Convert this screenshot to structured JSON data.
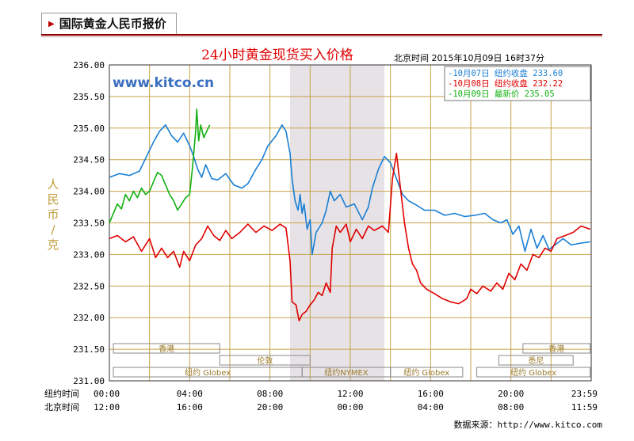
{
  "tab_title": "国际黄金人民币报价",
  "watermark": "www.kitco.cn",
  "source_text": "数据来源：http://www.kitco.com",
  "colors": {
    "day1": "#1a7fd4",
    "day2": "#e00000",
    "day3": "#10b010",
    "title": "#e00000",
    "grid": "#c8a24a",
    "shade": "#e6e2e6"
  },
  "chart_data": {
    "type": "line",
    "title": "24小时黄金现货买入价格",
    "subtitle": "北京时间  2015年10月09日 16时37分",
    "ylabel": "人民币/克",
    "ylim": [
      231.0,
      236.0
    ],
    "yticks": [
      "236.00",
      "235.50",
      "235.00",
      "234.50",
      "234.00",
      "233.50",
      "233.00",
      "232.50",
      "232.00",
      "231.50",
      "231.00"
    ],
    "x_rows": [
      {
        "label": "纽约时间",
        "ticks": [
          "00:00",
          "04:00",
          "08:00",
          "12:00",
          "16:00",
          "20:00",
          "23:59"
        ]
      },
      {
        "label": "北京时间",
        "ticks": [
          "12:00",
          "16:00",
          "20:00",
          "00:00",
          "04:00",
          "08:00",
          "11:59"
        ]
      }
    ],
    "xlim": [
      0,
      24
    ],
    "legend": [
      {
        "text": "-10月07日 纽约收盘 233.60",
        "color": "#1a7fd4"
      },
      {
        "text": "-10月08日 纽约收盘 232.22",
        "color": "#e00000"
      },
      {
        "text": "-10月09日   最新价 235.05",
        "color": "#10b010"
      }
    ],
    "shaded_range": [
      9.0,
      13.7
    ],
    "sessions": [
      {
        "label": "香港",
        "x0": 0.2,
        "x1": 5.5,
        "row": 1
      },
      {
        "label": "伦敦",
        "x0": 5.5,
        "x1": 10.0,
        "row": 2
      },
      {
        "label": "纽约 Globex",
        "x0": 0.2,
        "x1": 9.6,
        "row": 3
      },
      {
        "label": "纽约NYMEX",
        "x0": 9.6,
        "x1": 14.0,
        "row": 3
      },
      {
        "label": "纽约 Globex",
        "x0": 14.0,
        "x1": 17.6,
        "row": 3
      },
      {
        "label": "香港",
        "x0": 20.6,
        "x1": 23.95,
        "row": 1
      },
      {
        "label": "悉尼",
        "x0": 19.4,
        "x1": 23.1,
        "row": 2
      },
      {
        "label": "纽约 Globex",
        "x0": 18.3,
        "x1": 23.95,
        "row": 3
      }
    ],
    "series": [
      {
        "name": "10月07日",
        "values": [
          [
            0,
            234.22
          ],
          [
            0.5,
            234.28
          ],
          [
            1,
            234.25
          ],
          [
            1.5,
            234.32
          ],
          [
            2,
            234.65
          ],
          [
            2.2,
            234.78
          ],
          [
            2.5,
            234.95
          ],
          [
            2.8,
            235.05
          ],
          [
            3.1,
            234.88
          ],
          [
            3.4,
            234.78
          ],
          [
            3.7,
            234.92
          ],
          [
            4.0,
            234.72
          ],
          [
            4.2,
            234.55
          ],
          [
            4.4,
            234.35
          ],
          [
            4.6,
            234.22
          ],
          [
            4.8,
            234.42
          ],
          [
            5.1,
            234.2
          ],
          [
            5.4,
            234.18
          ],
          [
            5.8,
            234.28
          ],
          [
            6.2,
            234.1
          ],
          [
            6.6,
            234.05
          ],
          [
            6.9,
            234.12
          ],
          [
            7.3,
            234.35
          ],
          [
            7.6,
            234.5
          ],
          [
            7.9,
            234.72
          ],
          [
            8.3,
            234.88
          ],
          [
            8.6,
            235.05
          ],
          [
            8.8,
            234.95
          ],
          [
            9.0,
            234.6
          ],
          [
            9.1,
            234.2
          ],
          [
            9.25,
            233.85
          ],
          [
            9.4,
            233.7
          ],
          [
            9.5,
            233.95
          ],
          [
            9.6,
            233.65
          ],
          [
            9.7,
            233.8
          ],
          [
            9.85,
            233.4
          ],
          [
            10.0,
            233.55
          ],
          [
            10.1,
            233.0
          ],
          [
            10.3,
            233.35
          ],
          [
            10.6,
            233.5
          ],
          [
            10.8,
            233.7
          ],
          [
            11.0,
            234.0
          ],
          [
            11.2,
            233.85
          ],
          [
            11.5,
            233.95
          ],
          [
            11.8,
            233.75
          ],
          [
            12.2,
            233.8
          ],
          [
            12.6,
            233.55
          ],
          [
            12.9,
            233.75
          ],
          [
            13.1,
            234.05
          ],
          [
            13.4,
            234.35
          ],
          [
            13.7,
            234.55
          ],
          [
            14.0,
            234.45
          ],
          [
            14.3,
            234.2
          ],
          [
            14.6,
            233.95
          ],
          [
            14.9,
            233.85
          ],
          [
            15.3,
            233.78
          ],
          [
            15.7,
            233.7
          ],
          [
            16.2,
            233.7
          ],
          [
            16.7,
            233.62
          ],
          [
            17.2,
            233.65
          ],
          [
            17.7,
            233.6
          ],
          [
            18.2,
            233.62
          ],
          [
            18.7,
            233.65
          ],
          [
            19.1,
            233.55
          ],
          [
            19.5,
            233.5
          ],
          [
            19.8,
            233.55
          ],
          [
            20.1,
            233.32
          ],
          [
            20.4,
            233.45
          ],
          [
            20.7,
            233.05
          ],
          [
            21.0,
            233.4
          ],
          [
            21.3,
            233.1
          ],
          [
            21.6,
            233.3
          ],
          [
            21.9,
            233.08
          ],
          [
            22.2,
            233.15
          ],
          [
            22.6,
            233.25
          ],
          [
            23.0,
            233.15
          ],
          [
            23.5,
            233.18
          ],
          [
            23.95,
            233.2
          ]
        ]
      },
      {
        "name": "10月08日",
        "values": [
          [
            0,
            233.25
          ],
          [
            0.4,
            233.3
          ],
          [
            0.8,
            233.2
          ],
          [
            1.2,
            233.28
          ],
          [
            1.6,
            233.05
          ],
          [
            2.0,
            233.25
          ],
          [
            2.3,
            232.95
          ],
          [
            2.6,
            233.1
          ],
          [
            2.9,
            232.95
          ],
          [
            3.2,
            233.05
          ],
          [
            3.5,
            232.8
          ],
          [
            3.7,
            233.05
          ],
          [
            4.0,
            232.9
          ],
          [
            4.3,
            233.15
          ],
          [
            4.6,
            233.25
          ],
          [
            4.9,
            233.45
          ],
          [
            5.2,
            233.3
          ],
          [
            5.5,
            233.22
          ],
          [
            5.8,
            233.38
          ],
          [
            6.1,
            233.25
          ],
          [
            6.5,
            233.35
          ],
          [
            6.9,
            233.48
          ],
          [
            7.3,
            233.35
          ],
          [
            7.7,
            233.45
          ],
          [
            8.1,
            233.38
          ],
          [
            8.5,
            233.48
          ],
          [
            8.8,
            233.42
          ],
          [
            9.0,
            232.9
          ],
          [
            9.1,
            232.25
          ],
          [
            9.3,
            232.2
          ],
          [
            9.45,
            231.95
          ],
          [
            9.6,
            232.05
          ],
          [
            9.8,
            232.1
          ],
          [
            10.0,
            232.2
          ],
          [
            10.2,
            232.28
          ],
          [
            10.4,
            232.4
          ],
          [
            10.6,
            232.35
          ],
          [
            10.8,
            232.55
          ],
          [
            11.0,
            232.4
          ],
          [
            11.1,
            233.1
          ],
          [
            11.3,
            233.45
          ],
          [
            11.5,
            233.35
          ],
          [
            11.8,
            233.48
          ],
          [
            12.0,
            233.2
          ],
          [
            12.3,
            233.4
          ],
          [
            12.6,
            233.25
          ],
          [
            12.9,
            233.45
          ],
          [
            13.2,
            233.38
          ],
          [
            13.6,
            233.45
          ],
          [
            13.9,
            233.35
          ],
          [
            14.1,
            234.2
          ],
          [
            14.3,
            234.6
          ],
          [
            14.5,
            234.05
          ],
          [
            14.7,
            233.5
          ],
          [
            14.9,
            233.1
          ],
          [
            15.1,
            232.85
          ],
          [
            15.3,
            232.75
          ],
          [
            15.5,
            232.55
          ],
          [
            15.8,
            232.45
          ],
          [
            16.2,
            232.38
          ],
          [
            16.6,
            232.3
          ],
          [
            17.0,
            232.25
          ],
          [
            17.4,
            232.22
          ],
          [
            17.8,
            232.3
          ],
          [
            18.0,
            232.45
          ],
          [
            18.3,
            232.38
          ],
          [
            18.6,
            232.5
          ],
          [
            19.0,
            232.42
          ],
          [
            19.3,
            232.55
          ],
          [
            19.6,
            232.45
          ],
          [
            19.9,
            232.7
          ],
          [
            20.2,
            232.6
          ],
          [
            20.5,
            232.85
          ],
          [
            20.8,
            232.75
          ],
          [
            21.1,
            233.0
          ],
          [
            21.4,
            232.95
          ],
          [
            21.7,
            233.1
          ],
          [
            22.0,
            233.05
          ],
          [
            22.3,
            233.25
          ],
          [
            22.7,
            233.3
          ],
          [
            23.1,
            233.35
          ],
          [
            23.5,
            233.45
          ],
          [
            23.95,
            233.4
          ]
        ]
      },
      {
        "name": "10月09日",
        "values": [
          [
            0,
            233.5
          ],
          [
            0.2,
            233.65
          ],
          [
            0.4,
            233.8
          ],
          [
            0.6,
            233.72
          ],
          [
            0.8,
            233.95
          ],
          [
            1.0,
            233.85
          ],
          [
            1.2,
            234.0
          ],
          [
            1.4,
            233.9
          ],
          [
            1.6,
            234.05
          ],
          [
            1.8,
            233.95
          ],
          [
            2.0,
            234.0
          ],
          [
            2.2,
            234.15
          ],
          [
            2.4,
            234.3
          ],
          [
            2.6,
            234.25
          ],
          [
            2.8,
            234.1
          ],
          [
            3.0,
            233.95
          ],
          [
            3.2,
            233.85
          ],
          [
            3.4,
            233.7
          ],
          [
            3.6,
            233.8
          ],
          [
            3.8,
            233.9
          ],
          [
            4.0,
            233.95
          ],
          [
            4.15,
            234.4
          ],
          [
            4.3,
            234.95
          ],
          [
            4.35,
            235.3
          ],
          [
            4.45,
            234.8
          ],
          [
            4.55,
            235.05
          ],
          [
            4.7,
            234.85
          ],
          [
            4.85,
            234.95
          ],
          [
            5.0,
            235.05
          ]
        ]
      }
    ]
  }
}
